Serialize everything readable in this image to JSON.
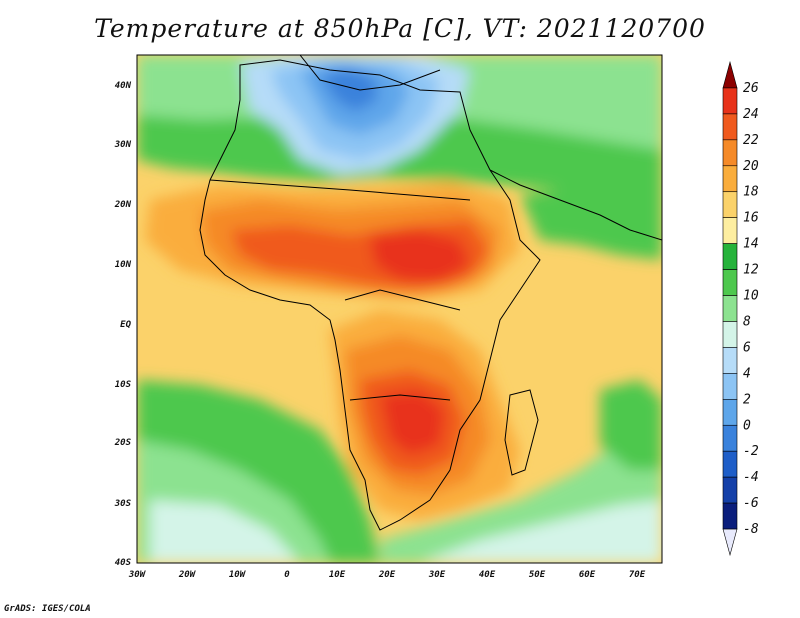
{
  "title": "Temperature at 850hPa [C], VT: 2021120700",
  "footer": "GrADS: IGES/COLA",
  "map": {
    "lon_labels": [
      "30W",
      "20W",
      "10W",
      "0",
      "10E",
      "20E",
      "30E",
      "40E",
      "50E",
      "60E",
      "70E"
    ],
    "lat_labels": [
      "40N",
      "30N",
      "20N",
      "10N",
      "EQ",
      "10S",
      "20S",
      "30S",
      "40S"
    ]
  },
  "colorbar": {
    "levels": [
      "26",
      "24",
      "22",
      "20",
      "18",
      "16",
      "14",
      "12",
      "10",
      "8",
      "6",
      "4",
      "2",
      "0",
      "-2",
      "-4",
      "-6",
      "-8"
    ],
    "colors": [
      "#8b0000",
      "#e8321a",
      "#f05a1e",
      "#f58a28",
      "#faad3c",
      "#fbd26a",
      "#fdeea0",
      "#26b33b",
      "#4ec84e",
      "#8ce290",
      "#d4f4e8",
      "#b6dcf8",
      "#8cc4f4",
      "#5ea6ea",
      "#3a82dc",
      "#1e5ec8",
      "#1440a8",
      "#0a1e7c",
      "#e8eafc"
    ],
    "unit": "C"
  }
}
